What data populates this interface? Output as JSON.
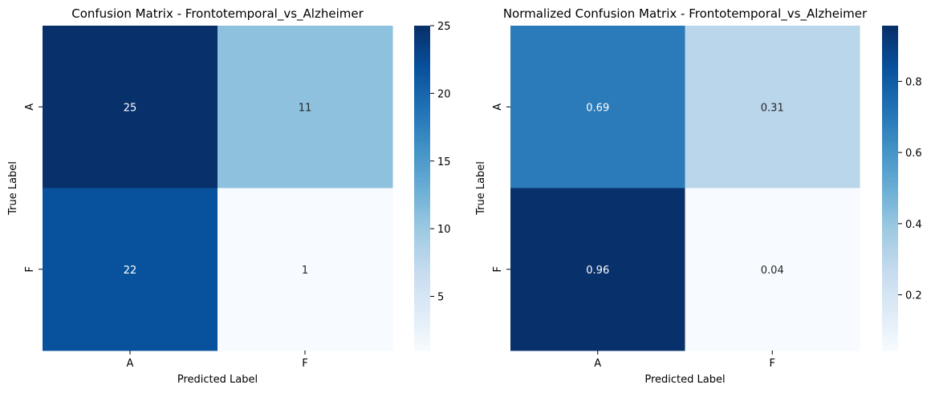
{
  "chart_data": [
    {
      "type": "heatmap",
      "title": "Confusion Matrix - Frontotemporal_vs_Alzheimer",
      "xlabel": "Predicted Label",
      "ylabel": "True Label",
      "x_categories": [
        "A",
        "F"
      ],
      "y_categories": [
        "A",
        "F"
      ],
      "values": [
        [
          25,
          11
        ],
        [
          22,
          1
        ]
      ],
      "cell_labels": [
        [
          "25",
          "11"
        ],
        [
          "22",
          "1"
        ]
      ],
      "colormap": "Blues",
      "vmin": 1,
      "vmax": 25,
      "colorbar_ticks": [
        5,
        10,
        15,
        20,
        25
      ],
      "colorbar_tick_labels": [
        "5",
        "10",
        "15",
        "20",
        "25"
      ]
    },
    {
      "type": "heatmap",
      "title": "Normalized Confusion Matrix - Frontotemporal_vs_Alzheimer",
      "xlabel": "Predicted Label",
      "ylabel": "True Label",
      "x_categories": [
        "A",
        "F"
      ],
      "y_categories": [
        "A",
        "F"
      ],
      "values": [
        [
          0.6944,
          0.3056
        ],
        [
          0.9565,
          0.0435
        ]
      ],
      "cell_labels": [
        [
          "0.69",
          "0.31"
        ],
        [
          "0.96",
          "0.04"
        ]
      ],
      "colormap": "Blues",
      "vmin": 0.0435,
      "vmax": 0.9565,
      "colorbar_ticks": [
        0.2,
        0.4,
        0.6,
        0.8
      ],
      "colorbar_tick_labels": [
        "0.2",
        "0.4",
        "0.6",
        "0.8"
      ]
    }
  ]
}
